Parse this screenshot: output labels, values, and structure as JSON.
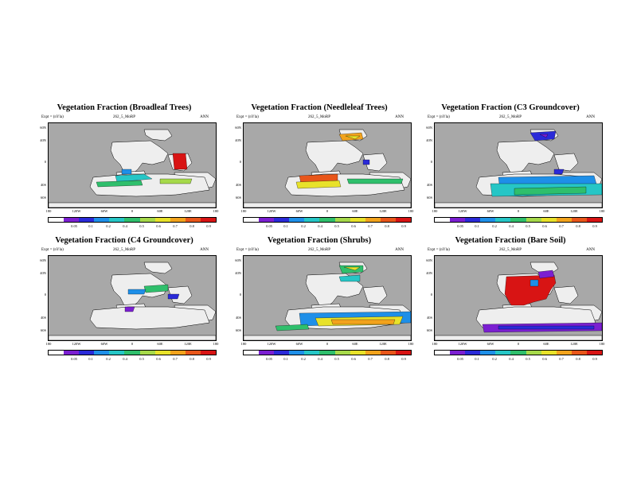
{
  "model_label": "Expt = (nYla)",
  "experiment": "262_5_MoRP",
  "season": "ANN",
  "colors": {
    "ocean": "#a8a8a8",
    "land": "#eeeeee",
    "scale": [
      "#ffffff",
      "#7b1fd1",
      "#2a2ad8",
      "#1e8fe8",
      "#26c6c6",
      "#2fbf6c",
      "#a6d94a",
      "#e8e22a",
      "#f2a31c",
      "#e8561a",
      "#d81414"
    ]
  },
  "lat_labels": [
    "60N",
    "40N",
    "0",
    "40S",
    "60S"
  ],
  "lon_labels": [
    "180",
    "120W",
    "60W",
    "0",
    "60E",
    "120E",
    "180"
  ],
  "colorbar_labels": [
    "0.05",
    "0.1",
    "0.2",
    "0.4",
    "0.5",
    "0.6",
    "0.7",
    "0.8",
    "0.9"
  ],
  "panels": [
    {
      "title": "Vegetation Fraction (Broadleaf Trees)"
    },
    {
      "title": "Vegetation Fraction (Needleleaf Trees)"
    },
    {
      "title": "Vegetation Fraction (C3 Groundcover)"
    },
    {
      "title": "Vegetation Fraction (C4 Groundcover)"
    },
    {
      "title": "Vegetation Fraction (Shrubs)"
    },
    {
      "title": "Vegetation Fraction (Bare Soil)"
    }
  ]
}
